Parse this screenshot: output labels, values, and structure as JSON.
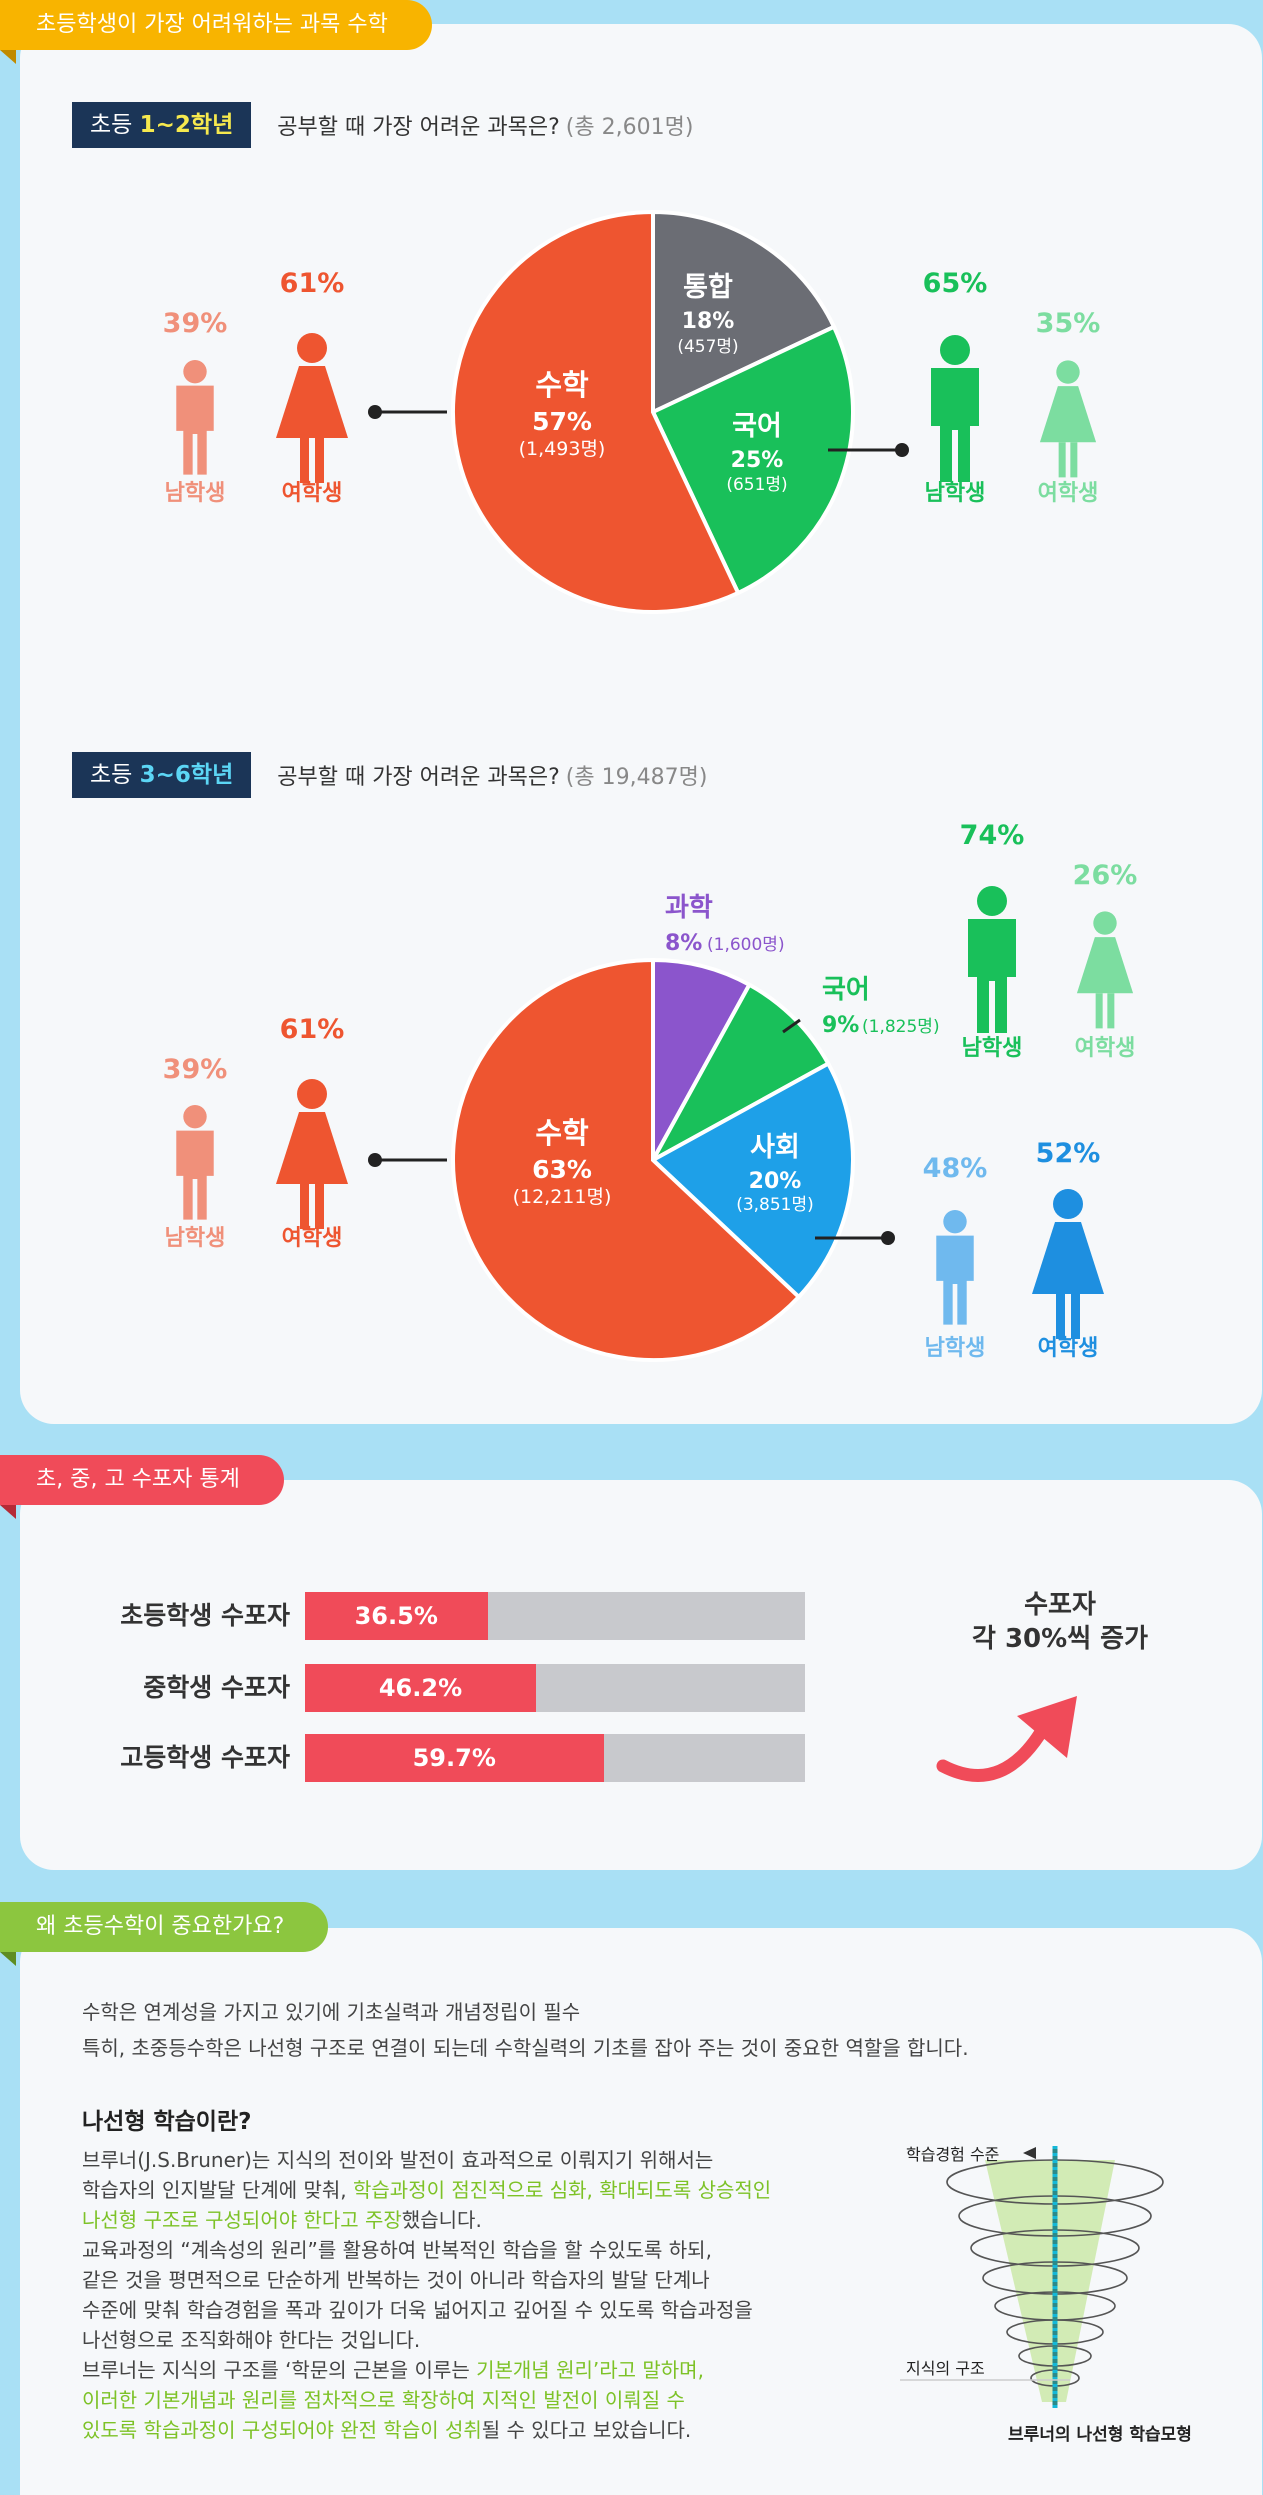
{
  "section1": {
    "tag": "초등학생이 가장 어려워하는 과목 수학",
    "q1": {
      "badge_prefix": "초등 ",
      "badge_highlight": "1~2학년",
      "question": "공부할 때 가장 어려운 과목은?",
      "total": "(총 2,601명)",
      "left_group": {
        "male_pct": "39%",
        "male_label": "남학생",
        "female_pct": "61%",
        "female_label": "여학생"
      },
      "right_group": {
        "male_pct": "65%",
        "male_label": "남학생",
        "female_pct": "35%",
        "female_label": "여학생"
      },
      "slices": [
        {
          "name": "수학",
          "pct": "57%",
          "count": "(1,493명)",
          "color": "#ee5530"
        },
        {
          "name": "통합",
          "pct": "18%",
          "count": "(457명)",
          "color": "#6b6d74"
        },
        {
          "name": "국어",
          "pct": "25%",
          "count": "(651명)",
          "color": "#19c05a"
        }
      ]
    },
    "q2": {
      "badge_prefix": "초등 ",
      "badge_highlight": "3~6학년",
      "question": "공부할 때 가장 어려운 과목은?",
      "total": "(총 19,487명)",
      "left_group": {
        "male_pct": "39%",
        "male_label": "남학생",
        "female_pct": "61%",
        "female_label": "여학생"
      },
      "top_group": {
        "male_pct": "74%",
        "male_label": "남학생",
        "female_pct": "26%",
        "female_label": "여학생"
      },
      "bottom_group": {
        "male_pct": "48%",
        "male_label": "남학생",
        "female_pct": "52%",
        "female_label": "여학생"
      },
      "slices": [
        {
          "name": "수학",
          "pct": "63%",
          "count": "(12,211명)",
          "color": "#ee5530"
        },
        {
          "name": "과학",
          "pct": "8%",
          "count": "(1,600명)",
          "color": "#8b55cc"
        },
        {
          "name": "국어",
          "pct": "9%",
          "count": "(1,825명)",
          "color": "#19c05a"
        },
        {
          "name": "사회",
          "pct": "20%",
          "count": "(3,851명)",
          "color": "#1ea0e8"
        }
      ]
    }
  },
  "section2": {
    "tag": "초, 중, 고 수포자 통계",
    "rows": [
      {
        "label": "초등학생 수포자",
        "value": "36.5%",
        "fraction": 0.365
      },
      {
        "label": "중학생 수포자",
        "value": "46.2%",
        "fraction": 0.462
      },
      {
        "label": "고등학생 수포자",
        "value": "59.7%",
        "fraction": 0.597
      }
    ],
    "note_line1": "수포자",
    "note_line2": "각 30%씩 증가"
  },
  "section3": {
    "tag": "왜 초등수학이 중요한가요?",
    "intro1": "수학은 연계성을 가지고 있기에 기초실력과 개념정립이 필수",
    "intro2": "특히, 초중등수학은 나선형 구조로 연결이 되는데 수학실력의 기초를 잡아 주는 것이 중요한 역할을 합니다.",
    "heading": "나선형 학습이란?",
    "l1": "브루너(J.S.Bruner)는 지식의 전이와 발전이 효과적으로 이뤄지기 위해서는",
    "l2a": "학습자의 인지발달 단계에 맞춰, ",
    "l2b": "학습과정이 점진적으로 심화, 확대되도록 상승적인",
    "l3a": "나선형 구조로 구성되어야 한다고 주장",
    "l3b": "했습니다.",
    "l4": "교육과정의 “계속성의 원리”를 활용하여 반복적인 학습을 할 수있도록 하되,",
    "l5": "같은 것을 평면적으로 단순하게 반복하는 것이 아니라 학습자의 발달 단계나",
    "l6": "수준에 맞춰 학습경험을 폭과 깊이가 더욱 넓어지고 깊어질 수 있도록 학습과정을",
    "l7": "나선형으로 조직화해야 한다는 것입니다.",
    "l8a": "브루너는 지식의 구조를 ‘학문의 근본을 이루는 ",
    "l8b": "기본개념 원리’라고 말하며,",
    "l9": "이러한 기본개념과 원리를 점차적으로 확장하여 지적인 발전이 이뤄질 수",
    "l10a": "있도록 학습과정이 구성되어야 완전 학습이 성취",
    "l10b": "될 수 있다고 보았습니다.",
    "diagram_top_label": "학습경험 수준",
    "diagram_bottom_label": "지식의 구조",
    "diagram_caption": "브루너의 나선형 학습모형"
  }
}
